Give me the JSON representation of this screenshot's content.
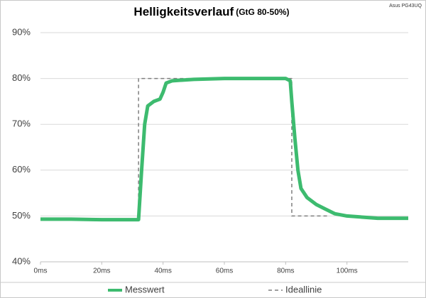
{
  "chart_data": {
    "type": "line",
    "title": "Helligkeitsverlauf",
    "subtitle": "(GtG 80-50%)",
    "annotation": "Asus PG43UQ",
    "xlim": [
      0,
      120
    ],
    "xticks": [
      {
        "value": 0,
        "label": "0ms"
      },
      {
        "value": 20,
        "label": "20ms"
      },
      {
        "value": 40,
        "label": "40ms"
      },
      {
        "value": 60,
        "label": "60ms"
      },
      {
        "value": 80,
        "label": "80ms"
      },
      {
        "value": 100,
        "label": "100ms"
      }
    ],
    "ylim": [
      40,
      90
    ],
    "yticks": [
      {
        "value": 40,
        "label": "40%"
      },
      {
        "value": 50,
        "label": "50%"
      },
      {
        "value": 60,
        "label": "60%"
      },
      {
        "value": 70,
        "label": "70%"
      },
      {
        "value": 80,
        "label": "80%"
      },
      {
        "value": 90,
        "label": "90%"
      }
    ],
    "grid": true,
    "legend": "bottom",
    "series": [
      {
        "name": "Ideallinie",
        "color": "#7f7f7f",
        "dashed": true,
        "x": [
          32,
          32,
          82,
          82,
          94
        ],
        "values": [
          50,
          80,
          80,
          50,
          50
        ]
      },
      {
        "name": "Messwert",
        "color": "#3dbb6f",
        "dashed": false,
        "x": [
          0,
          10,
          20,
          32,
          33,
          34,
          35,
          37,
          39,
          40,
          41,
          43,
          50,
          60,
          70,
          80,
          81.5,
          82,
          83,
          84,
          85,
          87,
          90,
          93,
          96,
          100,
          110,
          120
        ],
        "values": [
          49.3,
          49.3,
          49.2,
          49.2,
          60,
          70,
          74,
          75,
          75.5,
          77,
          79,
          79.5,
          79.8,
          80,
          80,
          80,
          79.5,
          75,
          67,
          60,
          56,
          54,
          52.5,
          51.5,
          50.5,
          50,
          49.5,
          49.5
        ]
      }
    ]
  }
}
